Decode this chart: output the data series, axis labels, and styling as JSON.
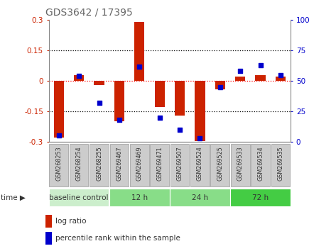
{
  "title": "GDS3642 / 17395",
  "samples": [
    "GSM268253",
    "GSM268254",
    "GSM268255",
    "GSM269467",
    "GSM269469",
    "GSM269471",
    "GSM269507",
    "GSM269524",
    "GSM269525",
    "GSM269533",
    "GSM269534",
    "GSM269535"
  ],
  "log_ratio": [
    -0.28,
    0.03,
    -0.02,
    -0.2,
    0.29,
    -0.13,
    -0.17,
    -0.295,
    -0.04,
    0.02,
    0.03,
    0.02
  ],
  "percentile_rank": [
    5,
    54,
    32,
    18,
    62,
    20,
    10,
    3,
    45,
    58,
    63,
    55
  ],
  "bar_color": "#cc2200",
  "dot_color": "#0000cc",
  "ylim_left": [
    -0.3,
    0.3
  ],
  "ylim_right": [
    0,
    100
  ],
  "yticks_left": [
    -0.3,
    -0.15,
    0,
    0.15,
    0.3
  ],
  "yticks_right": [
    0,
    25,
    50,
    75,
    100
  ],
  "groups": [
    {
      "label": "baseline control",
      "start": 0,
      "end": 3,
      "color": "#cceecc"
    },
    {
      "label": "12 h",
      "start": 3,
      "end": 6,
      "color": "#88dd88"
    },
    {
      "label": "24 h",
      "start": 6,
      "end": 9,
      "color": "#88dd88"
    },
    {
      "label": "72 h",
      "start": 9,
      "end": 12,
      "color": "#44cc44"
    }
  ],
  "legend_log_ratio": "log ratio",
  "legend_percentile": "percentile rank within the sample",
  "title_color": "#666666",
  "label_color": "#333333",
  "sample_box_color": "#cccccc",
  "sample_box_edge": "#999999"
}
